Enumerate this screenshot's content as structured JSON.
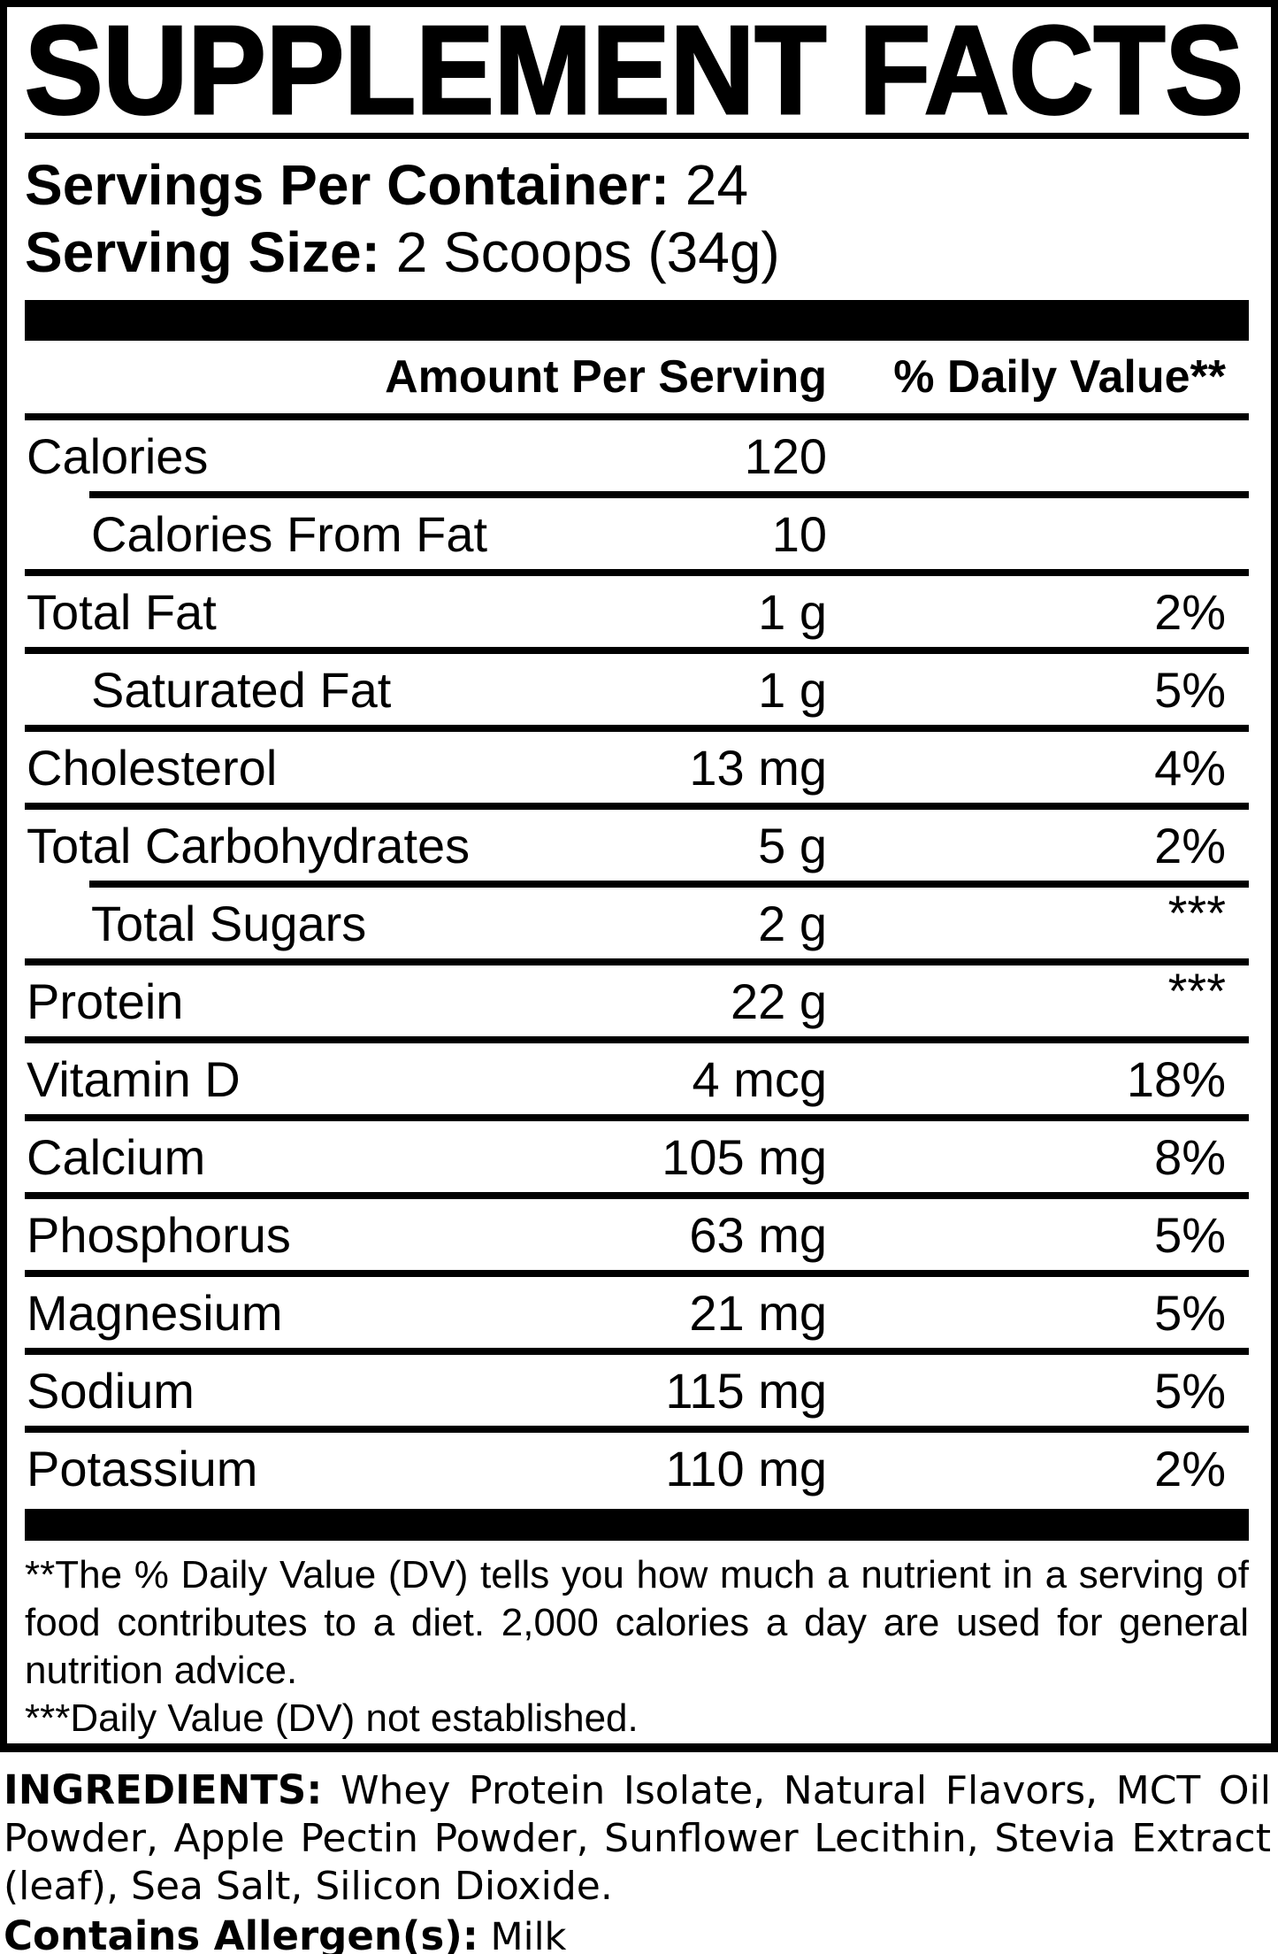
{
  "title": "SUPPLEMENT FACTS",
  "servings": {
    "label": "Servings Per Container:",
    "value": "24"
  },
  "serving_size": {
    "label": "Serving Size:",
    "value": "2 Scoops (34g)"
  },
  "table": {
    "header": {
      "amount": "Amount Per Serving",
      "dv": "% Daily Value**"
    },
    "rows": [
      {
        "name": "Calories",
        "amount": "120",
        "dv": ""
      },
      {
        "name": "Calories From Fat",
        "amount": "10",
        "dv": ""
      },
      {
        "name": "Total Fat",
        "amount": "1 g",
        "dv": "2%"
      },
      {
        "name": "Saturated Fat",
        "amount": "1 g",
        "dv": "5%"
      },
      {
        "name": "Cholesterol",
        "amount": "13 mg",
        "dv": "4%"
      },
      {
        "name": "Total Carbohydrates",
        "amount": "5 g",
        "dv": "2%"
      },
      {
        "name": "Total Sugars",
        "amount": "2 g",
        "dv": "***"
      },
      {
        "name": "Protein",
        "amount": "22 g",
        "dv": "***"
      },
      {
        "name": "Vitamin D",
        "amount": "4 mcg",
        "dv": "18%"
      },
      {
        "name": "Calcium",
        "amount": "105 mg",
        "dv": "8%"
      },
      {
        "name": "Phosphorus",
        "amount": "63 mg",
        "dv": "5%"
      },
      {
        "name": "Magnesium",
        "amount": "21 mg",
        "dv": "5%"
      },
      {
        "name": "Sodium",
        "amount": "115 mg",
        "dv": "5%"
      },
      {
        "name": "Potassium",
        "amount": "110 mg",
        "dv": "2%"
      }
    ]
  },
  "footnotes": {
    "dv_note": "**The % Daily Value (DV) tells you how much a nutrient in a serving of food contributes to a diet. 2,000 calories a day are used for general nutrition advice.",
    "not_established": "***Daily Value (DV) not established."
  },
  "ingredients": {
    "label": "INGREDIENTS:",
    "text": "Whey Protein Isolate, Natural Flavors, MCT Oil Powder, Apple Pectin Powder, Sunflower Lecithin, Stevia Extract (leaf), Sea Salt, Silicon Dioxide."
  },
  "allergen": {
    "label": "Contains Allergen(s):",
    "value": "Milk"
  },
  "colors": {
    "text": "#000000",
    "background": "#ffffff"
  }
}
